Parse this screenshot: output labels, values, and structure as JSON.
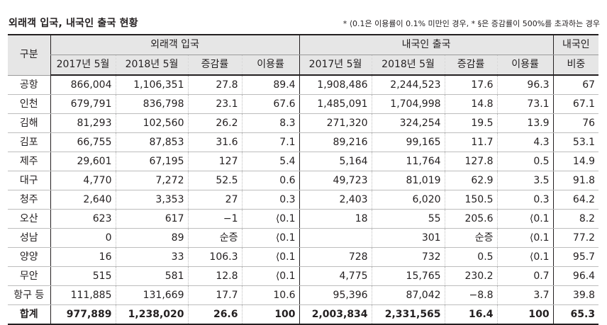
{
  "title": "외래객 입국, 내국인 출국 현황",
  "note": "* ⟨0.1은 이용률이 0.1% 미만인 경우, * §은 증감률이 500%를 초과하는 경우",
  "header": {
    "group_col": "구분",
    "inbound_group": "외래객 입국",
    "outbound_group": "내국인 출국",
    "share_line1": "내국인",
    "share_line2": "비중",
    "sub": [
      "2017년 5월",
      "2018년 5월",
      "증감률",
      "이용률",
      "2017년 5월",
      "2018년 5월",
      "증감률",
      "이용률"
    ]
  },
  "rows": [
    [
      "공항",
      "866,004",
      "1,106,351",
      "27.8",
      "89.4",
      "1,908,486",
      "2,244,523",
      "17.6",
      "96.3",
      "67"
    ],
    [
      "인천",
      "679,791",
      "836,798",
      "23.1",
      "67.6",
      "1,485,091",
      "1,704,998",
      "14.8",
      "73.1",
      "67.1"
    ],
    [
      "김해",
      "81,293",
      "102,560",
      "26.2",
      "8.3",
      "271,320",
      "324,254",
      "19.5",
      "13.9",
      "76"
    ],
    [
      "김포",
      "66,755",
      "87,853",
      "31.6",
      "7.1",
      "89,216",
      "99,165",
      "11.7",
      "4.3",
      "53.1"
    ],
    [
      "제주",
      "29,601",
      "67,195",
      "127",
      "5.4",
      "5,164",
      "11,764",
      "127.8",
      "0.5",
      "14.9"
    ],
    [
      "대구",
      "4,770",
      "7,272",
      "52.5",
      "0.6",
      "49,723",
      "81,019",
      "62.9",
      "3.5",
      "91.8"
    ],
    [
      "청주",
      "2,640",
      "3,353",
      "27",
      "0.3",
      "2,403",
      "6,020",
      "150.5",
      "0.3",
      "64.2"
    ],
    [
      "오산",
      "623",
      "617",
      "−1",
      "⟨0.1",
      "18",
      "55",
      "205.6",
      "⟨0.1",
      "8.2"
    ],
    [
      "성남",
      "0",
      "89",
      "순증",
      "⟨0.1",
      "",
      "301",
      "순증",
      "⟨0.1",
      "77.2"
    ],
    [
      "양양",
      "16",
      "33",
      "106.3",
      "⟨0.1",
      "728",
      "732",
      "0.5",
      "⟨0.1",
      "95.7"
    ],
    [
      "무안",
      "515",
      "581",
      "12.8",
      "⟨0.1",
      "4,775",
      "15,765",
      "230.2",
      "0.7",
      "96.4"
    ],
    [
      "항구 등",
      "111,885",
      "131,669",
      "17.7",
      "10.6",
      "95,396",
      "87,042",
      "−8.8",
      "3.7",
      "39.8"
    ],
    [
      "합계",
      "977,889",
      "1,238,020",
      "26.6",
      "100",
      "2,003,834",
      "2,331,565",
      "16.4",
      "100",
      "65.3"
    ]
  ]
}
